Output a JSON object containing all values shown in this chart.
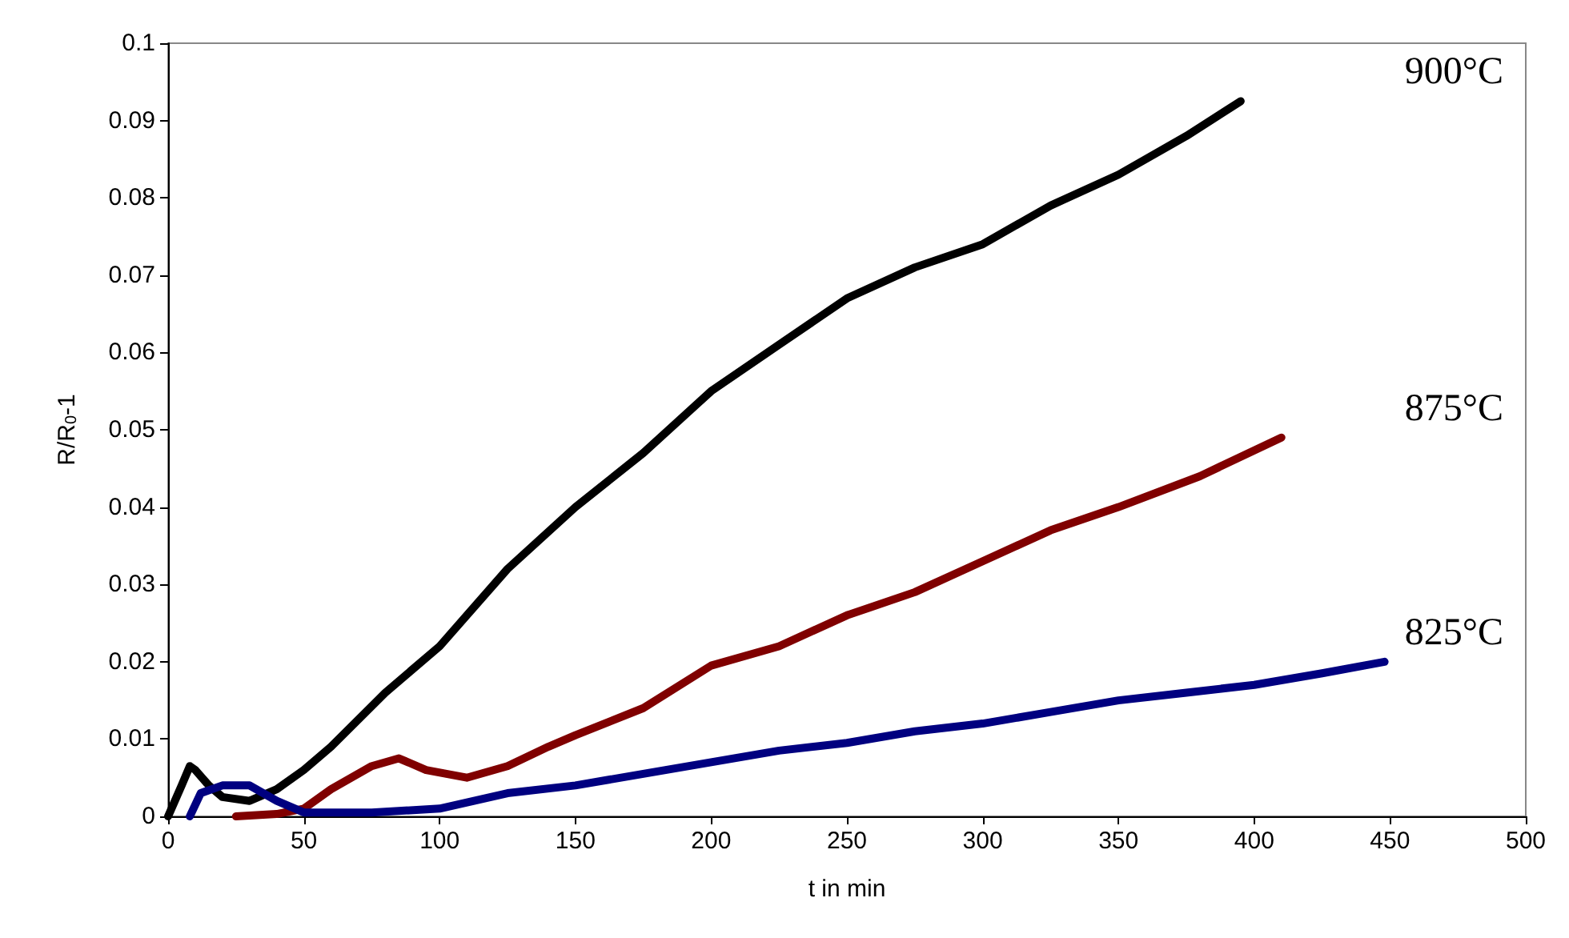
{
  "chart_data": {
    "type": "line",
    "xlabel": "t in min",
    "ylabel": "R/R$_{0}$-1",
    "xlim": [
      0,
      500
    ],
    "xticks": [
      0,
      50,
      100,
      150,
      200,
      250,
      300,
      350,
      400,
      450,
      500
    ],
    "ylim": [
      0,
      0.1
    ],
    "yticks": [
      0,
      0.01,
      0.02,
      0.03,
      0.04,
      0.05,
      0.06,
      0.07,
      0.08,
      0.09,
      0.1
    ],
    "grid": false,
    "legend": false,
    "marker": "none",
    "line_style": "solid",
    "series": [
      {
        "name": "900°C",
        "color": "#000000",
        "x": [
          0,
          5,
          8,
          10,
          15,
          20,
          30,
          40,
          50,
          60,
          80,
          100,
          125,
          150,
          175,
          200,
          225,
          250,
          275,
          300,
          325,
          350,
          375,
          395
        ],
        "values": [
          0,
          0.004,
          0.0065,
          0.006,
          0.004,
          0.0025,
          0.002,
          0.0035,
          0.006,
          0.009,
          0.016,
          0.022,
          0.032,
          0.04,
          0.047,
          0.055,
          0.061,
          0.067,
          0.071,
          0.074,
          0.079,
          0.083,
          0.088,
          0.0925
        ]
      },
      {
        "name": "875°C",
        "color": "#800000",
        "x": [
          25,
          40,
          50,
          60,
          75,
          85,
          95,
          110,
          125,
          140,
          150,
          175,
          200,
          225,
          250,
          275,
          300,
          325,
          350,
          380,
          410
        ],
        "values": [
          0,
          0.0003,
          0.001,
          0.0035,
          0.0065,
          0.0075,
          0.006,
          0.005,
          0.0065,
          0.009,
          0.0105,
          0.014,
          0.0195,
          0.022,
          0.026,
          0.029,
          0.033,
          0.037,
          0.04,
          0.044,
          0.049
        ]
      },
      {
        "name": "825°C",
        "color": "#000080",
        "x": [
          8,
          12,
          20,
          30,
          40,
          50,
          75,
          100,
          125,
          150,
          175,
          200,
          225,
          250,
          275,
          300,
          325,
          350,
          375,
          400,
          425,
          448
        ],
        "values": [
          0,
          0.003,
          0.004,
          0.004,
          0.002,
          0.0005,
          0.0005,
          0.001,
          0.003,
          0.004,
          0.0055,
          0.007,
          0.0085,
          0.0095,
          0.011,
          0.012,
          0.0135,
          0.015,
          0.016,
          0.017,
          0.0185,
          0.02
        ]
      }
    ]
  }
}
